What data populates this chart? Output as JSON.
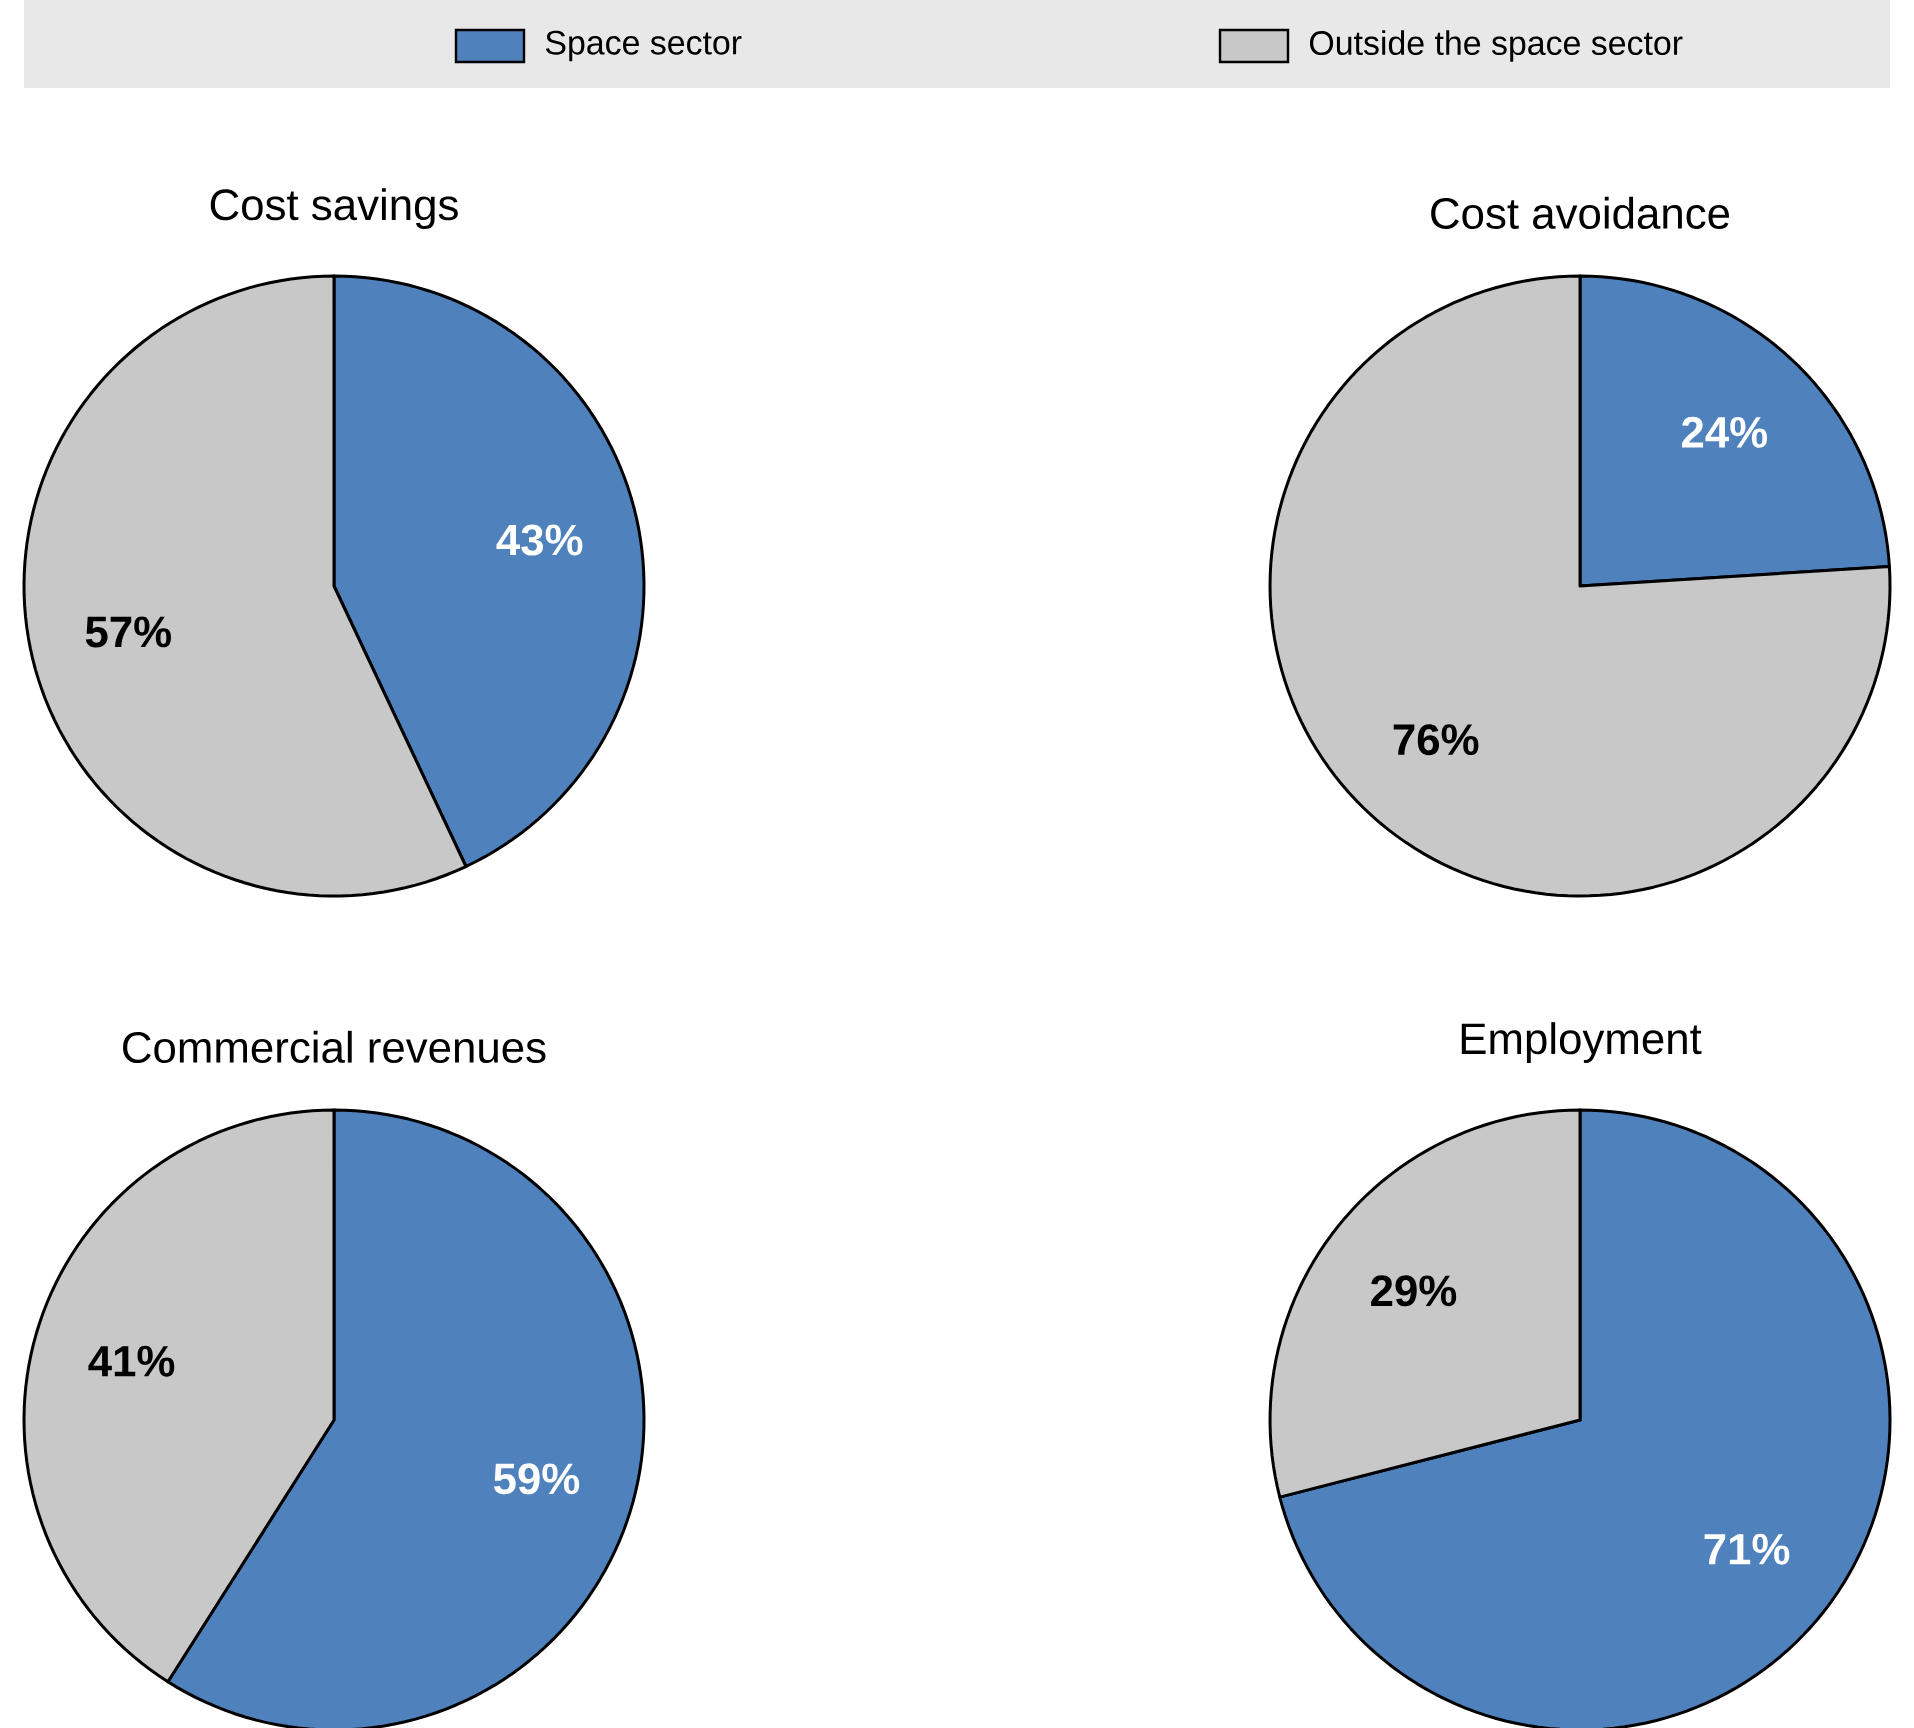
{
  "chart_data": [
    {
      "type": "pie",
      "title": "Cost savings",
      "categories": [
        "Space sector",
        "Outside the space sector"
      ],
      "values": [
        43,
        57
      ],
      "value_labels": [
        "43%",
        "57%"
      ],
      "colors": [
        "#4f81bd",
        "#c8c8c8"
      ],
      "legend": "top"
    },
    {
      "type": "pie",
      "title": "Cost avoidance",
      "categories": [
        null,
        null
      ],
      "values": [
        24,
        76
      ],
      "value_labels": [
        "24%",
        "76%"
      ],
      "colors": [
        "#4f81bd",
        "#c8c8c8"
      ]
    },
    {
      "type": "pie",
      "title": "Commercial revenues",
      "categories": [
        null,
        null
      ],
      "values": [
        59,
        41
      ],
      "value_labels": [
        "59%",
        "41%"
      ],
      "colors": [
        "#4f81bd",
        "#c8c8c8"
      ]
    },
    {
      "type": "pie",
      "title": "Employment",
      "categories": [
        null,
        null
      ],
      "values": [
        71,
        29
      ],
      "value_labels": [
        "71%",
        "29%"
      ],
      "colors": [
        "#4f81bd",
        "#c8c8c8"
      ]
    }
  ]
}
